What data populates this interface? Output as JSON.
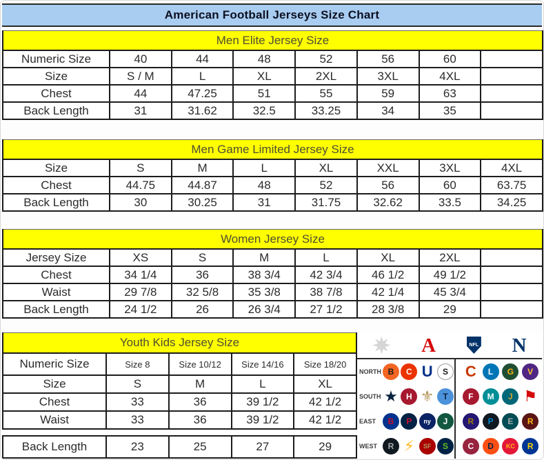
{
  "title": "American Football Jerseys Size Chart",
  "colors": {
    "title_bar": "#a9cdf1",
    "section_band": "#ffff00",
    "table_border": "#1c1c1c",
    "afc_red": "#d50a0a",
    "nfl_blue": "#013369"
  },
  "chart_data": [
    {
      "type": "table",
      "title": "Men Elite Jersey Size",
      "rows": [
        {
          "label": "Numeric Size",
          "cells": [
            "40",
            "44",
            "48",
            "52",
            "56",
            "60",
            ""
          ]
        },
        {
          "label": "Size",
          "cells": [
            "S / M",
            "L",
            "XL",
            "2XL",
            "3XL",
            "4XL",
            ""
          ]
        },
        {
          "label": "Chest",
          "cells": [
            "44",
            "47.25",
            "51",
            "55",
            "59",
            "63",
            ""
          ]
        },
        {
          "label": "Back Length",
          "cells": [
            "31",
            "31.62",
            "32.5",
            "33.25",
            "34",
            "35",
            ""
          ]
        }
      ]
    },
    {
      "type": "table",
      "title": "Men Game Limited Jersey Size",
      "rows": [
        {
          "label": "Size",
          "cells": [
            "S",
            "M",
            "L",
            "XL",
            "XXL",
            "3XL",
            "4XL"
          ]
        },
        {
          "label": "Chest",
          "cells": [
            "44.75",
            "44.87",
            "48",
            "52",
            "56",
            "60",
            "63.75"
          ]
        },
        {
          "label": "Back Length",
          "cells": [
            "30",
            "30.25",
            "31",
            "31.75",
            "32.62",
            "33.5",
            "34.25"
          ]
        }
      ]
    },
    {
      "type": "table",
      "title": "Women Jersey Size",
      "rows": [
        {
          "label": "Jersey Size",
          "cells": [
            "XS",
            "S",
            "M",
            "L",
            "XL",
            "2XL",
            ""
          ]
        },
        {
          "label": "Chest",
          "cells": [
            "34 1/4",
            "36",
            "38 3/4",
            "42 3/4",
            "46 1/2",
            "49 1/2",
            ""
          ]
        },
        {
          "label": "Waist",
          "cells": [
            "29 7/8",
            "32 5/8",
            "35 3/8",
            "38 7/8",
            "42 1/4",
            "45 3/4",
            ""
          ]
        },
        {
          "label": "Back Length",
          "cells": [
            "24 1/2",
            "26",
            "26 3/4",
            "27 1/2",
            "28 3/8",
            "29",
            ""
          ]
        }
      ]
    },
    {
      "type": "table",
      "title": "Youth Kids Jersey Size",
      "rows": [
        {
          "label": "Numeric Size",
          "cells": [
            "Size 8",
            "Size 10/12",
            "Size 14/16",
            "Size 18/20"
          ]
        },
        {
          "label": "Size",
          "cells": [
            "S",
            "M",
            "L",
            "XL"
          ]
        },
        {
          "label": "Chest",
          "cells": [
            "33",
            "36",
            "39 1/2",
            "42 1/2"
          ]
        },
        {
          "label": "Waist",
          "cells": [
            "33",
            "36",
            "39 1/2",
            "42 1/2"
          ]
        },
        {
          "label": "Back Length",
          "cells": [
            "23",
            "25",
            "27",
            "29"
          ]
        }
      ]
    }
  ],
  "logo_panel": {
    "conference_icons": [
      {
        "name": "starburst-icon",
        "type": "star",
        "color": "#d6d6d6"
      },
      {
        "name": "afc-logo-icon",
        "type": "letter",
        "text": "A",
        "color": "#d50a0a"
      },
      {
        "name": "nfl-shield-icon",
        "type": "shield",
        "text": "NFL",
        "color": "#013369"
      },
      {
        "name": "nfc-logo-icon",
        "type": "letter",
        "text": "N",
        "color": "#013369"
      }
    ],
    "divisions": [
      {
        "label": "NORTH",
        "left": [
          {
            "team": "bengals",
            "abbr": "B",
            "bg": "#f26522",
            "fg": "#1a1a1a"
          },
          {
            "team": "browns",
            "abbr": "C",
            "bg": "#eb3300",
            "fg": "#ffffff"
          },
          {
            "team": "colts",
            "shape": "glyph",
            "glyph": "U",
            "fg": "#013087"
          },
          {
            "team": "steelers",
            "abbr": "S",
            "bg": "#ffffff",
            "fg": "#1a1a1a",
            "border": "#9a9a9a"
          }
        ],
        "right": [
          {
            "team": "bears",
            "shape": "glyph",
            "glyph": "C",
            "fg": "#c83803"
          },
          {
            "team": "lions",
            "abbr": "L",
            "bg": "#0076b6",
            "fg": "#ffffff"
          },
          {
            "team": "packers",
            "abbr": "G",
            "bg": "#204e32",
            "fg": "#ffb612"
          },
          {
            "team": "vikings",
            "abbr": "V",
            "bg": "#4f2683",
            "fg": "#ffc62f"
          }
        ]
      },
      {
        "label": "SOUTH",
        "left": [
          {
            "team": "cowboys",
            "shape": "glyph",
            "glyph": "★",
            "fg": "#0a2240"
          },
          {
            "team": "texans",
            "abbr": "H",
            "bg": "#a71930",
            "fg": "#ffffff"
          },
          {
            "team": "saints",
            "shape": "glyph",
            "glyph": "⚜",
            "fg": "#b5985a"
          },
          {
            "team": "titans",
            "abbr": "T",
            "bg": "#4b92db",
            "fg": "#0c2340"
          }
        ],
        "right": [
          {
            "team": "falcons",
            "abbr": "F",
            "bg": "#a71930",
            "fg": "#ffffff"
          },
          {
            "team": "dolphins",
            "abbr": "M",
            "bg": "#008e97",
            "fg": "#ffffff"
          },
          {
            "team": "jaguars",
            "abbr": "J",
            "bg": "#006778",
            "fg": "#d7a22a"
          },
          {
            "team": "buccaneers",
            "shape": "glyph",
            "glyph": "⚑",
            "fg": "#d50a0a"
          }
        ]
      },
      {
        "label": "EAST",
        "left": [
          {
            "team": "bills",
            "abbr": "B",
            "bg": "#00338d",
            "fg": "#c60c30"
          },
          {
            "team": "patriots",
            "abbr": "P",
            "bg": "#002244",
            "fg": "#c8102e"
          },
          {
            "team": "giants",
            "abbr": "ny",
            "bg": "#0b2265",
            "fg": "#ffffff"
          },
          {
            "team": "jets",
            "abbr": "J",
            "bg": "#125740",
            "fg": "#ffffff"
          }
        ],
        "right": [
          {
            "team": "ravens",
            "abbr": "R",
            "bg": "#241773",
            "fg": "#9e7c0c"
          },
          {
            "team": "panthers",
            "abbr": "P",
            "bg": "#101820",
            "fg": "#0085ca"
          },
          {
            "team": "eagles",
            "abbr": "E",
            "bg": "#004c54",
            "fg": "#a5acaf"
          },
          {
            "team": "redskins",
            "abbr": "R",
            "bg": "#5a1414",
            "fg": "#ffb612"
          }
        ]
      },
      {
        "label": "WEST",
        "left": [
          {
            "team": "raiders",
            "abbr": "R",
            "bg": "#101820",
            "fg": "#a5acaf"
          },
          {
            "team": "chargers",
            "shape": "glyph",
            "glyph": "⚡",
            "fg": "#ffb81c"
          },
          {
            "team": "49ers",
            "abbr": "SF",
            "bg": "#aa0000",
            "fg": "#b3995d"
          },
          {
            "team": "seahawks",
            "abbr": "S",
            "bg": "#002244",
            "fg": "#69be28"
          }
        ],
        "right": [
          {
            "team": "cardinals",
            "abbr": "C",
            "bg": "#97233f",
            "fg": "#ffffff"
          },
          {
            "team": "broncos",
            "abbr": "D",
            "bg": "#fb4f14",
            "fg": "#002244"
          },
          {
            "team": "chiefs",
            "abbr": "KC",
            "bg": "#e31837",
            "fg": "#ffb81c"
          },
          {
            "team": "rams",
            "abbr": "R",
            "bg": "#003594",
            "fg": "#ffd100"
          }
        ]
      }
    ]
  }
}
